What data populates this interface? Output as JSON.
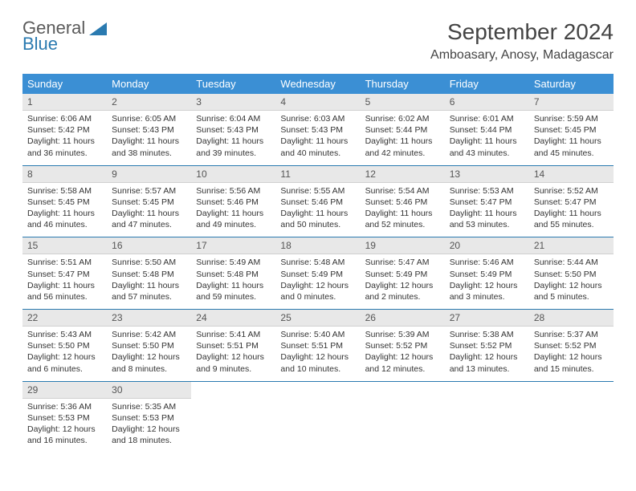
{
  "logo": {
    "text1": "General",
    "text2": "Blue"
  },
  "title": "September 2024",
  "location": "Amboasary, Anosy, Madagascar",
  "colors": {
    "header_bg": "#3b8fd4",
    "header_text": "#ffffff",
    "daynum_bg": "#e8e8e8",
    "row_border": "#2a7ab0",
    "logo_blue": "#2a7ab0",
    "logo_gray": "#5a5a5a",
    "body_text": "#333333"
  },
  "weekdays": [
    "Sunday",
    "Monday",
    "Tuesday",
    "Wednesday",
    "Thursday",
    "Friday",
    "Saturday"
  ],
  "weeks": [
    [
      {
        "n": "1",
        "sr": "6:06 AM",
        "ss": "5:42 PM",
        "dl": "11 hours and 36 minutes."
      },
      {
        "n": "2",
        "sr": "6:05 AM",
        "ss": "5:43 PM",
        "dl": "11 hours and 38 minutes."
      },
      {
        "n": "3",
        "sr": "6:04 AM",
        "ss": "5:43 PM",
        "dl": "11 hours and 39 minutes."
      },
      {
        "n": "4",
        "sr": "6:03 AM",
        "ss": "5:43 PM",
        "dl": "11 hours and 40 minutes."
      },
      {
        "n": "5",
        "sr": "6:02 AM",
        "ss": "5:44 PM",
        "dl": "11 hours and 42 minutes."
      },
      {
        "n": "6",
        "sr": "6:01 AM",
        "ss": "5:44 PM",
        "dl": "11 hours and 43 minutes."
      },
      {
        "n": "7",
        "sr": "5:59 AM",
        "ss": "5:45 PM",
        "dl": "11 hours and 45 minutes."
      }
    ],
    [
      {
        "n": "8",
        "sr": "5:58 AM",
        "ss": "5:45 PM",
        "dl": "11 hours and 46 minutes."
      },
      {
        "n": "9",
        "sr": "5:57 AM",
        "ss": "5:45 PM",
        "dl": "11 hours and 47 minutes."
      },
      {
        "n": "10",
        "sr": "5:56 AM",
        "ss": "5:46 PM",
        "dl": "11 hours and 49 minutes."
      },
      {
        "n": "11",
        "sr": "5:55 AM",
        "ss": "5:46 PM",
        "dl": "11 hours and 50 minutes."
      },
      {
        "n": "12",
        "sr": "5:54 AM",
        "ss": "5:46 PM",
        "dl": "11 hours and 52 minutes."
      },
      {
        "n": "13",
        "sr": "5:53 AM",
        "ss": "5:47 PM",
        "dl": "11 hours and 53 minutes."
      },
      {
        "n": "14",
        "sr": "5:52 AM",
        "ss": "5:47 PM",
        "dl": "11 hours and 55 minutes."
      }
    ],
    [
      {
        "n": "15",
        "sr": "5:51 AM",
        "ss": "5:47 PM",
        "dl": "11 hours and 56 minutes."
      },
      {
        "n": "16",
        "sr": "5:50 AM",
        "ss": "5:48 PM",
        "dl": "11 hours and 57 minutes."
      },
      {
        "n": "17",
        "sr": "5:49 AM",
        "ss": "5:48 PM",
        "dl": "11 hours and 59 minutes."
      },
      {
        "n": "18",
        "sr": "5:48 AM",
        "ss": "5:49 PM",
        "dl": "12 hours and 0 minutes."
      },
      {
        "n": "19",
        "sr": "5:47 AM",
        "ss": "5:49 PM",
        "dl": "12 hours and 2 minutes."
      },
      {
        "n": "20",
        "sr": "5:46 AM",
        "ss": "5:49 PM",
        "dl": "12 hours and 3 minutes."
      },
      {
        "n": "21",
        "sr": "5:44 AM",
        "ss": "5:50 PM",
        "dl": "12 hours and 5 minutes."
      }
    ],
    [
      {
        "n": "22",
        "sr": "5:43 AM",
        "ss": "5:50 PM",
        "dl": "12 hours and 6 minutes."
      },
      {
        "n": "23",
        "sr": "5:42 AM",
        "ss": "5:50 PM",
        "dl": "12 hours and 8 minutes."
      },
      {
        "n": "24",
        "sr": "5:41 AM",
        "ss": "5:51 PM",
        "dl": "12 hours and 9 minutes."
      },
      {
        "n": "25",
        "sr": "5:40 AM",
        "ss": "5:51 PM",
        "dl": "12 hours and 10 minutes."
      },
      {
        "n": "26",
        "sr": "5:39 AM",
        "ss": "5:52 PM",
        "dl": "12 hours and 12 minutes."
      },
      {
        "n": "27",
        "sr": "5:38 AM",
        "ss": "5:52 PM",
        "dl": "12 hours and 13 minutes."
      },
      {
        "n": "28",
        "sr": "5:37 AM",
        "ss": "5:52 PM",
        "dl": "12 hours and 15 minutes."
      }
    ],
    [
      {
        "n": "29",
        "sr": "5:36 AM",
        "ss": "5:53 PM",
        "dl": "12 hours and 16 minutes."
      },
      {
        "n": "30",
        "sr": "5:35 AM",
        "ss": "5:53 PM",
        "dl": "12 hours and 18 minutes."
      },
      null,
      null,
      null,
      null,
      null
    ]
  ],
  "labels": {
    "sunrise": "Sunrise: ",
    "sunset": "Sunset: ",
    "daylight": "Daylight: "
  }
}
